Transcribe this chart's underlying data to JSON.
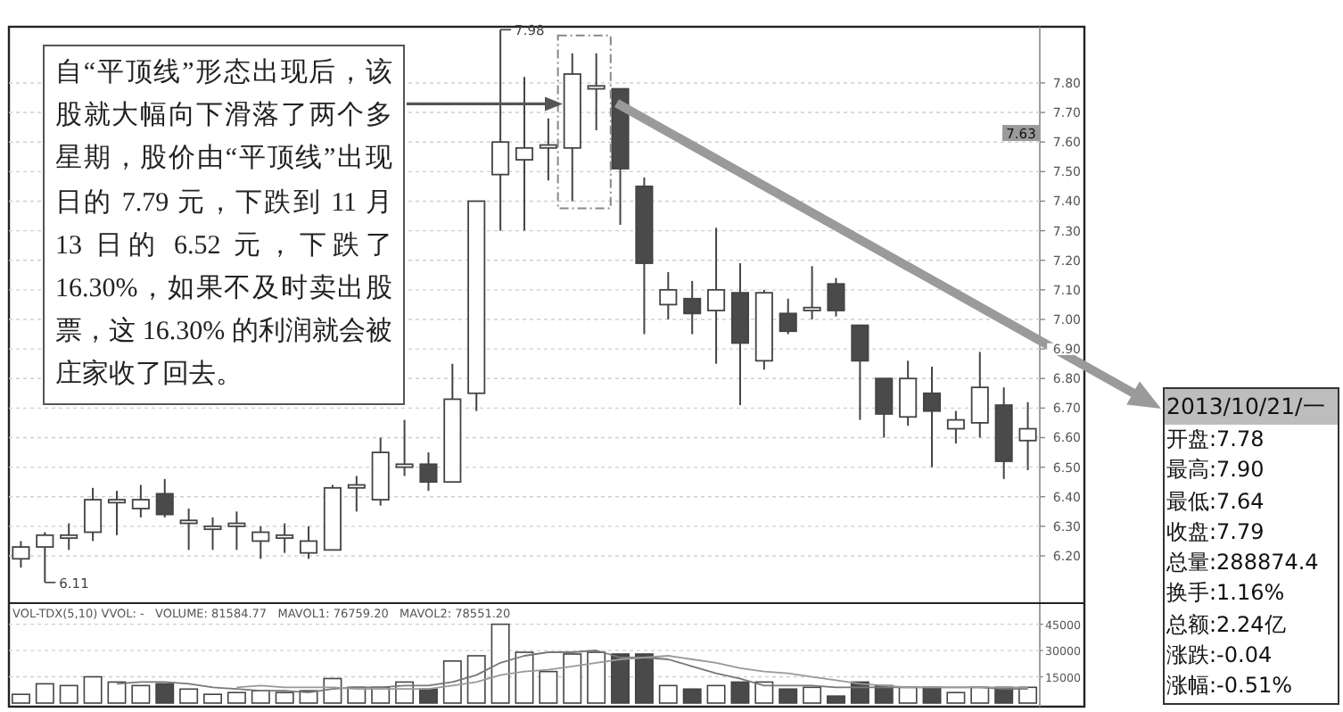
{
  "chart_data": [
    {
      "type": "candlestick",
      "categories": [
        null,
        null,
        null,
        null,
        null,
        null,
        null,
        null,
        null,
        null,
        null,
        null,
        null,
        null,
        null,
        null,
        null,
        null,
        null,
        null,
        null,
        null,
        null,
        null,
        null,
        null,
        null,
        null,
        null,
        null,
        null,
        null,
        null,
        null,
        null,
        null,
        null,
        null,
        null,
        null,
        null,
        null,
        null
      ],
      "ohlc": [
        [
          6.19,
          6.25,
          6.16,
          6.23
        ],
        [
          6.23,
          6.28,
          6.11,
          6.27
        ],
        [
          6.26,
          6.31,
          6.22,
          6.27
        ],
        [
          6.28,
          6.43,
          6.25,
          6.39
        ],
        [
          6.38,
          6.42,
          6.27,
          6.39
        ],
        [
          6.36,
          6.44,
          6.33,
          6.39
        ],
        [
          6.41,
          6.46,
          6.33,
          6.34
        ],
        [
          6.31,
          6.36,
          6.22,
          6.32
        ],
        [
          6.29,
          6.33,
          6.22,
          6.3
        ],
        [
          6.3,
          6.35,
          6.22,
          6.31
        ],
        [
          6.25,
          6.3,
          6.19,
          6.28
        ],
        [
          6.26,
          6.31,
          6.21,
          6.27
        ],
        [
          6.21,
          6.3,
          6.19,
          6.25
        ],
        [
          6.22,
          6.44,
          6.22,
          6.43
        ],
        [
          6.43,
          6.47,
          6.35,
          6.44
        ],
        [
          6.39,
          6.6,
          6.37,
          6.55
        ],
        [
          6.5,
          6.66,
          6.47,
          6.51
        ],
        [
          6.51,
          6.55,
          6.42,
          6.45
        ],
        [
          6.45,
          6.85,
          6.45,
          6.73
        ],
        [
          6.75,
          7.4,
          6.69,
          7.4
        ],
        [
          7.49,
          7.98,
          7.3,
          7.6
        ],
        [
          7.54,
          7.82,
          7.3,
          7.58
        ],
        [
          7.58,
          7.68,
          7.47,
          7.59
        ],
        [
          7.58,
          7.9,
          7.4,
          7.83
        ],
        [
          7.78,
          7.9,
          7.64,
          7.79
        ],
        [
          7.78,
          7.78,
          7.32,
          7.51
        ],
        [
          7.45,
          7.48,
          6.95,
          7.19
        ],
        [
          7.05,
          7.16,
          7.0,
          7.1
        ],
        [
          7.07,
          7.13,
          6.95,
          7.02
        ],
        [
          7.03,
          7.31,
          6.85,
          7.1
        ],
        [
          7.09,
          7.19,
          6.71,
          6.92
        ],
        [
          6.86,
          7.1,
          6.83,
          7.09
        ],
        [
          7.02,
          7.07,
          6.95,
          6.96
        ],
        [
          7.03,
          7.18,
          7.0,
          7.04
        ],
        [
          7.12,
          7.14,
          7.01,
          7.03
        ],
        [
          6.98,
          6.98,
          6.66,
          6.86
        ],
        [
          6.8,
          6.8,
          6.6,
          6.68
        ],
        [
          6.67,
          6.86,
          6.64,
          6.8
        ],
        [
          6.75,
          6.84,
          6.5,
          6.69
        ],
        [
          6.63,
          6.69,
          6.58,
          6.66
        ],
        [
          6.65,
          6.89,
          6.6,
          6.77
        ],
        [
          6.71,
          6.77,
          6.46,
          6.52
        ],
        [
          6.59,
          6.72,
          6.49,
          6.63
        ]
      ],
      "ylim": [
        6.04,
        7.99
      ],
      "yticks": [
        {
          "value": 6.2,
          "label": "6.20"
        },
        {
          "value": 6.3,
          "label": "6.30"
        },
        {
          "value": 6.4,
          "label": "6.40"
        },
        {
          "value": 6.5,
          "label": "6.50"
        },
        {
          "value": 6.6,
          "label": "6.60"
        },
        {
          "value": 6.7,
          "label": "6.70"
        },
        {
          "value": 6.8,
          "label": "6.80"
        },
        {
          "value": 6.9,
          "label": "6.90"
        },
        {
          "value": 7.0,
          "label": "7.00"
        },
        {
          "value": 7.1,
          "label": "7.10"
        },
        {
          "value": 7.2,
          "label": "7.20"
        },
        {
          "value": 7.3,
          "label": "7.30"
        },
        {
          "value": 7.4,
          "label": "7.40"
        },
        {
          "value": 7.5,
          "label": "7.50"
        },
        {
          "value": 7.6,
          "label": "7.60"
        },
        {
          "value": 7.7,
          "label": "7.70"
        },
        {
          "value": 7.8,
          "label": "7.80"
        }
      ],
      "grid": "y",
      "tick_labels": "y",
      "annotations": [
        "自“平顶线”形态出现后，该股就大幅向下滑落了两个多星期，股价由“平顶线”出现日的 7.79 元，下跌到 11 月 13 日的 6.52 元，下跌了 16.30%，如果不及时卖出股票，这 16.30% 的利润就会被庄家收了回去。",
        "2013/10/21/一",
        "开盘:7.78",
        "最高:7.90",
        "最低:7.64",
        "收盘:7.79",
        "总量:288874.4",
        "换手:1.16%",
        "总额:2.24亿",
        "涨跌:-0.04",
        "涨幅:-0.51%",
        "7.98",
        "6.11",
        "7.63"
      ]
    },
    {
      "type": "bar",
      "categories": [
        null,
        null,
        null,
        null,
        null,
        null,
        null,
        null,
        null,
        null,
        null,
        null,
        null,
        null,
        null,
        null,
        null,
        null,
        null,
        null,
        null,
        null,
        null,
        null,
        null,
        null,
        null,
        null,
        null,
        null,
        null,
        null,
        null,
        null,
        null,
        null,
        null,
        null,
        null,
        null,
        null,
        null,
        null
      ],
      "series": [
        {
          "type": "bar",
          "values": [
            5000,
            11000,
            10000,
            15000,
            12000,
            10000,
            11000,
            8000,
            5000,
            6000,
            7000,
            6000,
            7000,
            14000,
            9000,
            9000,
            12000,
            8000,
            24000,
            27000,
            45000,
            29000,
            18000,
            28000,
            29000,
            28000,
            28000,
            10000,
            8000,
            10000,
            12000,
            12000,
            8000,
            9000,
            4000,
            12000,
            10000,
            9000,
            9000,
            6000,
            9000,
            9000,
            9000
          ],
          "colors": [
            "#ffffff",
            "#ffffff",
            "#ffffff",
            "#ffffff",
            "#ffffff",
            "#ffffff",
            "#4a4a4a",
            "#ffffff",
            "#ffffff",
            "#ffffff",
            "#ffffff",
            "#ffffff",
            "#ffffff",
            "#ffffff",
            "#ffffff",
            "#ffffff",
            "#ffffff",
            "#4a4a4a",
            "#ffffff",
            "#ffffff",
            "#ffffff",
            "#ffffff",
            "#ffffff",
            "#ffffff",
            "#ffffff",
            "#4a4a4a",
            "#4a4a4a",
            "#ffffff",
            "#4a4a4a",
            "#ffffff",
            "#4a4a4a",
            "#ffffff",
            "#4a4a4a",
            "#ffffff",
            "#4a4a4a",
            "#4a4a4a",
            "#4a4a4a",
            "#ffffff",
            "#4a4a4a",
            "#ffffff",
            "#ffffff",
            "#4a4a4a",
            "#ffffff"
          ]
        },
        {
          "type": "line",
          "color": "#777777",
          "values": [
            null,
            null,
            null,
            null,
            11000,
            12000,
            12000,
            11000,
            9000,
            8000,
            7000,
            7000,
            6000,
            8000,
            9000,
            9000,
            10000,
            10000,
            12000,
            16000,
            23000,
            27000,
            29000,
            29000,
            30000,
            26000,
            26000,
            25000,
            21000,
            17000,
            14000,
            10000,
            10000,
            10000,
            9000,
            9000,
            9000,
            9000,
            9000,
            9000,
            9000,
            8000,
            8000
          ]
        },
        {
          "type": "line",
          "color": "#999999",
          "values": [
            null,
            null,
            null,
            null,
            null,
            null,
            null,
            null,
            null,
            9000,
            10000,
            9000,
            9000,
            9000,
            8000,
            8000,
            8000,
            8000,
            10000,
            12000,
            16000,
            18000,
            19000,
            21000,
            23000,
            25000,
            26000,
            27000,
            25000,
            23000,
            20000,
            18000,
            17000,
            15000,
            13000,
            11000,
            10000,
            9000,
            9000,
            9000,
            9000,
            9000,
            9000
          ]
        }
      ],
      "ylim": [
        0,
        55000
      ],
      "yticks": [
        15000,
        30000,
        45000
      ],
      "grid": "y",
      "tick_labels": "y",
      "annotations": [
        "VOL-TDX(5,10) VVOL: -   VOLUME: 81584.77   MAVOL1: 76759.20   MAVOL2: 78551.20"
      ]
    }
  ]
}
